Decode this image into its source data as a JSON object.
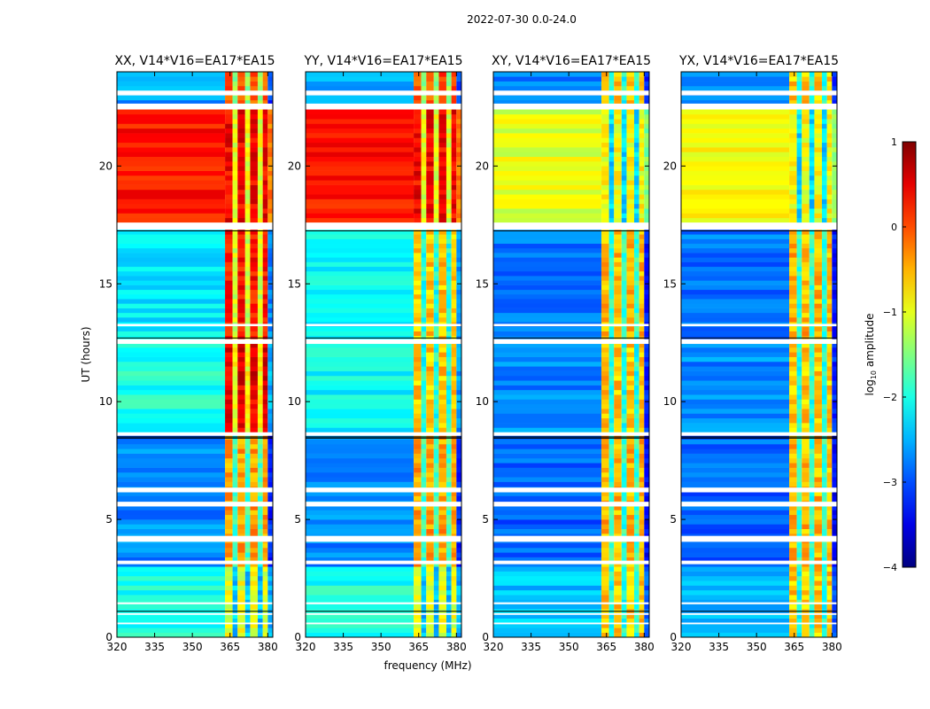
{
  "title": "2022-07-30 0.0-24.0",
  "chart_data": {
    "type": "heatmap",
    "title": "2022-07-30 0.0-24.0",
    "xlabel": "frequency (MHz)",
    "ylabel": "UT (hours)",
    "xlim": [
      320,
      382
    ],
    "ylim": [
      0,
      24
    ],
    "xticks": [
      320,
      335,
      350,
      365,
      380
    ],
    "yticks": [
      0,
      5,
      10,
      15,
      20
    ],
    "panels": [
      {
        "name": "XX, V14*V16=EA17*EA15"
      },
      {
        "name": "YY, V14*V16=EA17*EA15"
      },
      {
        "name": "XY, V14*V16=EA17*EA15"
      },
      {
        "name": "YX, V14*V16=EA17*EA15"
      }
    ],
    "colorbar": {
      "label_prefix": "log",
      "label_sub": "10",
      "label_suffix": " amplitude",
      "range": [
        -4,
        1
      ],
      "ticks": [
        1,
        0,
        -1,
        -2,
        -3,
        -4
      ],
      "tick_labels": [
        "1",
        "0",
        "−1",
        "−2",
        "−3",
        "−4"
      ],
      "colormap": "jet"
    }
  }
}
